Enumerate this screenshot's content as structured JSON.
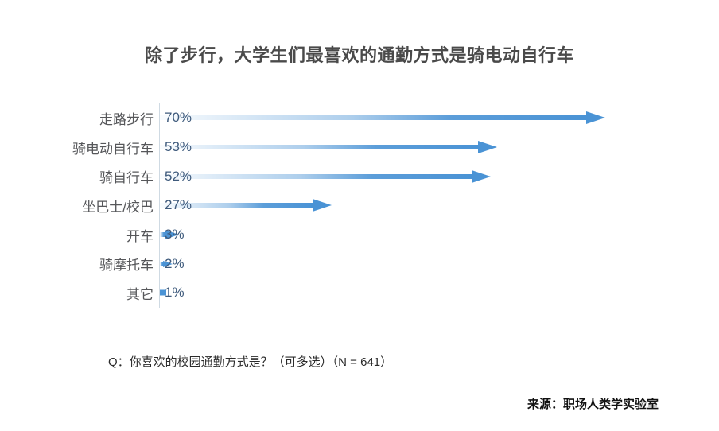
{
  "page": {
    "background": "#ffffff"
  },
  "chart_data": {
    "type": "bar",
    "orientation": "horizontal",
    "title": "除了步行，大学生们最喜欢的通勤方式是骑电动自行车",
    "categories": [
      "走路步行",
      "骑电动自行车",
      "骑自行车",
      "坐巴士/校巴",
      "开车",
      "骑摩托车",
      "其它"
    ],
    "values": [
      70,
      53,
      52,
      27,
      3,
      2,
      1
    ],
    "value_labels": [
      "70%",
      "53%",
      "52%",
      "27%",
      "3%",
      "2%",
      "1%"
    ],
    "unit": "%",
    "xlim": [
      0,
      88
    ],
    "grid": false,
    "legend": false,
    "bar_style": "gradient-arrow",
    "bar_color": "#4a93d5",
    "value_label_color": "#3e5a7c",
    "category_label_color": "#56575a",
    "axis_line_color": "#cfdae3",
    "title_color": "#4a4a4a"
  },
  "footer": {
    "question": "Q：你喜欢的校园通勤方式是？（可多选）（N = 641）",
    "source": "来源：职场人类学实验室"
  }
}
